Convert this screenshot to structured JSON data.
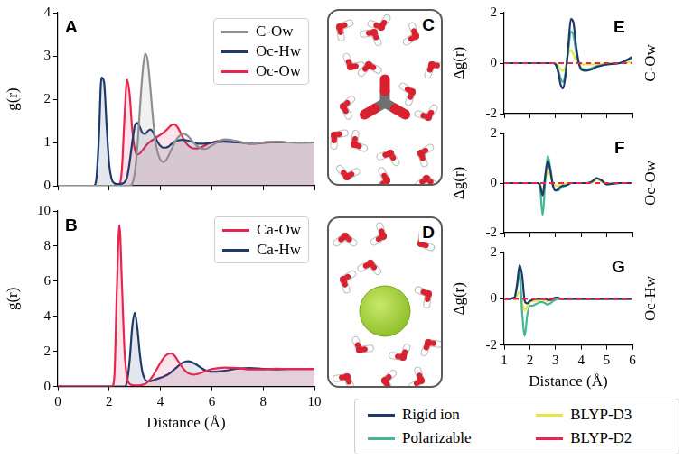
{
  "chart_data": [
    {
      "panel_label": "A",
      "type": "area",
      "y_label": "g(r)",
      "x": [
        0,
        1,
        1.4,
        1.5,
        1.6,
        1.7,
        1.8,
        1.9,
        2,
        2.1,
        2.2,
        2.3,
        2.4,
        2.5,
        2.6,
        2.7,
        2.8,
        2.9,
        3,
        3.1,
        3.2,
        3.3,
        3.4,
        3.5,
        3.6,
        3.7,
        3.8,
        3.9,
        4,
        4.1,
        4.2,
        4.3,
        4.4,
        4.5,
        4.6,
        4.7,
        4.8,
        4.9,
        5,
        5.1,
        5.2,
        5.3,
        5.4,
        5.5,
        5.6,
        5.7,
        5.8,
        5.9,
        6,
        6.5,
        7,
        7.5,
        8,
        8.5,
        9,
        9.5,
        10
      ],
      "xlim": [
        0,
        10
      ],
      "xticks": [
        0,
        2,
        4,
        6,
        8,
        10
      ],
      "ylim": [
        0,
        4
      ],
      "yticks": [
        0,
        1,
        2,
        3,
        4
      ],
      "tick_labels": "y",
      "grid": false,
      "legend": "upper right",
      "series": [
        {
          "name": "C-Ow",
          "color": "#8f8f8f",
          "values": [
            0,
            0,
            0,
            0,
            0,
            0,
            0,
            0,
            0,
            0,
            0,
            0,
            0,
            0,
            0,
            0,
            0,
            0.05,
            0.3,
            0.9,
            1.8,
            2.6,
            3.05,
            2.9,
            2.3,
            1.6,
            1.05,
            0.75,
            0.6,
            0.55,
            0.58,
            0.68,
            0.8,
            0.93,
            1.05,
            1.13,
            1.18,
            1.2,
            1.18,
            1.13,
            1.06,
            0.99,
            0.93,
            0.89,
            0.86,
            0.85,
            0.86,
            0.89,
            0.93,
            1.07,
            1.03,
            0.97,
            1.0,
            1.02,
            1.0,
            0.99,
            1.0
          ]
        },
        {
          "name": "Oc-Hw",
          "color": "#1d3a6d",
          "values": [
            0,
            0,
            0,
            0.15,
            1.1,
            2.5,
            2.4,
            1.4,
            0.5,
            0.15,
            0.06,
            0.04,
            0.04,
            0.05,
            0.08,
            0.2,
            0.55,
            1.0,
            1.38,
            1.45,
            1.35,
            1.22,
            1.2,
            1.26,
            1.3,
            1.25,
            1.12,
            1.0,
            0.92,
            0.88,
            0.88,
            0.9,
            0.95,
            1.0,
            1.03,
            1.05,
            1.06,
            1.06,
            1.05,
            1.04,
            1.02,
            1.0,
            0.98,
            0.97,
            0.97,
            0.97,
            0.98,
            0.99,
            1.0,
            1.02,
            1.0,
            0.99,
            1.0,
            1.01,
            1.0,
            1.0,
            1.0
          ]
        },
        {
          "name": "Oc-Ow",
          "color": "#e8244f",
          "values": [
            0,
            0,
            0,
            0,
            0,
            0,
            0,
            0,
            0,
            0,
            0,
            0,
            0.02,
            0.4,
            1.6,
            2.45,
            2.1,
            1.3,
            0.85,
            0.72,
            0.75,
            0.82,
            0.9,
            0.97,
            1.02,
            1.06,
            1.1,
            1.14,
            1.18,
            1.22,
            1.27,
            1.33,
            1.39,
            1.42,
            1.4,
            1.32,
            1.2,
            1.08,
            0.98,
            0.92,
            0.88,
            0.86,
            0.86,
            0.87,
            0.89,
            0.92,
            0.95,
            0.98,
            1.0,
            1.05,
            1.02,
            0.97,
            0.99,
            1.01,
            1.0,
            1.0,
            1.0
          ]
        }
      ]
    },
    {
      "panel_label": "B",
      "type": "area",
      "x_label": "Distance (Å)",
      "y_label": "g(r)",
      "x": [
        0,
        1,
        1.4,
        1.5,
        1.6,
        1.7,
        1.8,
        1.9,
        2,
        2.1,
        2.2,
        2.3,
        2.4,
        2.5,
        2.6,
        2.7,
        2.8,
        2.9,
        3,
        3.1,
        3.2,
        3.3,
        3.4,
        3.5,
        3.6,
        3.7,
        3.8,
        3.9,
        4,
        4.1,
        4.2,
        4.3,
        4.4,
        4.5,
        4.6,
        4.7,
        4.8,
        4.9,
        5,
        5.1,
        5.2,
        5.3,
        5.4,
        5.5,
        5.6,
        5.7,
        5.8,
        5.9,
        6,
        6.5,
        7,
        7.5,
        8,
        8.5,
        9,
        9.5,
        10
      ],
      "xlim": [
        0,
        10
      ],
      "xticks": [
        0,
        2,
        4,
        6,
        8,
        10
      ],
      "ylim": [
        0,
        10
      ],
      "yticks": [
        0,
        2,
        4,
        6,
        8,
        10
      ],
      "grid": false,
      "legend": "upper right",
      "series": [
        {
          "name": "Ca-Ow",
          "color": "#e8244f",
          "values": [
            0,
            0,
            0,
            0,
            0,
            0,
            0,
            0,
            0,
            0,
            0.5,
            5.5,
            9.2,
            5.8,
            2.0,
            0.5,
            0.15,
            0.08,
            0.06,
            0.06,
            0.07,
            0.1,
            0.15,
            0.25,
            0.4,
            0.6,
            0.85,
            1.1,
            1.35,
            1.58,
            1.75,
            1.85,
            1.88,
            1.82,
            1.65,
            1.42,
            1.2,
            1.0,
            0.85,
            0.75,
            0.7,
            0.68,
            0.7,
            0.74,
            0.79,
            0.85,
            0.9,
            0.95,
            0.99,
            1.08,
            1.05,
            0.97,
            0.98,
            1.01,
            1.0,
            1.0,
            1.0
          ]
        },
        {
          "name": "Ca-Hw",
          "color": "#1d3a6d",
          "values": [
            0,
            0,
            0,
            0,
            0,
            0,
            0,
            0,
            0,
            0,
            0,
            0,
            0,
            0,
            0,
            0.3,
            1.5,
            3.4,
            4.2,
            3.3,
            1.8,
            0.8,
            0.4,
            0.3,
            0.3,
            0.35,
            0.4,
            0.45,
            0.5,
            0.55,
            0.62,
            0.7,
            0.8,
            0.92,
            1.05,
            1.18,
            1.3,
            1.38,
            1.43,
            1.44,
            1.4,
            1.33,
            1.25,
            1.15,
            1.05,
            0.96,
            0.9,
            0.86,
            0.84,
            0.9,
            1.02,
            1.05,
            1.0,
            0.98,
            1.0,
            1.0,
            1.0
          ]
        }
      ]
    },
    {
      "panel_label": "E",
      "type": "line",
      "y_label": "Δg(r)",
      "side_label": "C-Ow",
      "x": [
        1,
        1.2,
        1.4,
        1.5,
        1.6,
        1.7,
        1.8,
        1.9,
        2,
        2.1,
        2.2,
        2.3,
        2.4,
        2.5,
        2.6,
        2.7,
        2.8,
        2.9,
        3,
        3.1,
        3.2,
        3.3,
        3.4,
        3.5,
        3.6,
        3.7,
        3.8,
        3.9,
        4,
        4.2,
        4.4,
        4.6,
        4.8,
        5,
        5.5,
        6
      ],
      "xlim": [
        1,
        6
      ],
      "xticks": [
        1,
        2,
        3,
        4,
        5,
        6
      ],
      "ylim": [
        -2,
        2
      ],
      "yticks": [
        -2,
        0,
        2
      ],
      "tick_labels": "y",
      "grid": false,
      "series": [
        {
          "name": "Rigid ion",
          "color": "#1d3a6d",
          "values": [
            0,
            0,
            0,
            0,
            0,
            0,
            0,
            0,
            0,
            0,
            0,
            0,
            0,
            0,
            0,
            0,
            0,
            0,
            -0.05,
            -0.35,
            -0.85,
            -1.0,
            -0.4,
            0.7,
            1.75,
            1.6,
            0.7,
            0.05,
            -0.25,
            -0.3,
            -0.25,
            -0.15,
            -0.1,
            -0.05,
            0,
            0.25
          ]
        },
        {
          "name": "Polarizable",
          "color": "#45b796",
          "values": [
            0,
            0,
            0,
            0,
            0,
            0,
            0,
            0,
            0,
            0,
            0,
            0,
            0,
            0,
            0,
            0,
            0,
            0,
            -0.03,
            -0.25,
            -0.6,
            -0.75,
            -0.3,
            0.5,
            1.25,
            1.1,
            0.45,
            0,
            -0.2,
            -0.25,
            -0.2,
            -0.12,
            -0.08,
            -0.05,
            0,
            0.2
          ]
        },
        {
          "name": "BLYP-D3",
          "color": "#f0e14a",
          "values": [
            0,
            0,
            0,
            0,
            0,
            0,
            0,
            0,
            0,
            0,
            0,
            0,
            0,
            0,
            0,
            0,
            0,
            0,
            -0.02,
            -0.1,
            -0.25,
            -0.3,
            -0.1,
            0.35,
            0.5,
            0.35,
            0.1,
            0,
            -0.05,
            -0.05,
            -0.05,
            -0.03,
            -0.02,
            0,
            0,
            0.05
          ]
        },
        {
          "name": "BLYP-D2",
          "color": "#e8244f",
          "line_style": "dashed",
          "values": [
            0,
            0,
            0,
            0,
            0,
            0,
            0,
            0,
            0,
            0,
            0,
            0,
            0,
            0,
            0,
            0,
            0,
            0,
            0,
            0,
            0,
            0,
            0,
            0,
            0,
            0,
            0,
            0,
            0,
            0,
            0,
            0,
            0,
            0,
            0,
            0
          ]
        }
      ]
    },
    {
      "panel_label": "F",
      "type": "line",
      "y_label": "Δg(r)",
      "side_label": "Oc-Ow",
      "x": [
        1,
        1.2,
        1.4,
        1.5,
        1.6,
        1.7,
        1.8,
        1.9,
        2,
        2.1,
        2.2,
        2.3,
        2.4,
        2.5,
        2.6,
        2.7,
        2.8,
        2.9,
        3,
        3.1,
        3.2,
        3.3,
        3.4,
        3.5,
        3.6,
        3.7,
        3.8,
        3.9,
        4,
        4.2,
        4.4,
        4.6,
        4.8,
        5,
        5.5,
        6
      ],
      "xlim": [
        1,
        6
      ],
      "xticks": [
        1,
        2,
        3,
        4,
        5,
        6
      ],
      "ylim": [
        -2,
        2
      ],
      "yticks": [
        -2,
        0,
        2
      ],
      "tick_labels": "y",
      "grid": false,
      "series": [
        {
          "name": "Rigid ion",
          "color": "#1d3a6d",
          "values": [
            0,
            0,
            0,
            0,
            0,
            0,
            0,
            0,
            0,
            0,
            0,
            0,
            -0.1,
            -0.5,
            0.3,
            0.9,
            0.5,
            -0.1,
            -0.3,
            -0.25,
            -0.15,
            -0.1,
            -0.1,
            -0.05,
            0,
            0,
            0,
            0,
            0,
            0,
            0.05,
            0.2,
            0.1,
            -0.05,
            0,
            0
          ]
        },
        {
          "name": "Polarizable",
          "color": "#45b796",
          "values": [
            0,
            0,
            0,
            0,
            0,
            0,
            0,
            0,
            0,
            0,
            0,
            0,
            -0.2,
            -1.3,
            0.1,
            1.1,
            0.6,
            -0.1,
            -0.3,
            -0.3,
            -0.2,
            -0.15,
            -0.1,
            -0.05,
            0,
            0,
            0,
            0,
            0,
            0,
            0.05,
            0.2,
            0.1,
            -0.05,
            0,
            0
          ]
        },
        {
          "name": "BLYP-D3",
          "color": "#f0e14a",
          "values": [
            0,
            0,
            0,
            0,
            0,
            0,
            0,
            0,
            0,
            0,
            0,
            0,
            -0.05,
            -0.3,
            0.1,
            0.45,
            0.3,
            0,
            -0.1,
            -0.1,
            -0.05,
            -0.05,
            0,
            0,
            0,
            0,
            0,
            0,
            0,
            0,
            0,
            0.15,
            0.05,
            0,
            0,
            0
          ]
        },
        {
          "name": "BLYP-D2",
          "color": "#e8244f",
          "line_style": "dashed",
          "values": [
            0,
            0,
            0,
            0,
            0,
            0,
            0,
            0,
            0,
            0,
            0,
            0,
            0,
            0,
            0,
            0,
            0,
            0,
            0,
            0,
            0,
            0,
            0,
            0,
            0,
            0,
            0,
            0,
            0,
            0,
            0,
            0,
            0,
            0,
            0,
            0
          ]
        }
      ]
    },
    {
      "panel_label": "G",
      "type": "line",
      "x_label": "Distance (Å)",
      "y_label": "Δg(r)",
      "side_label": "Oc-Hw",
      "x": [
        1,
        1.2,
        1.4,
        1.5,
        1.6,
        1.7,
        1.8,
        1.9,
        2,
        2.1,
        2.2,
        2.3,
        2.4,
        2.5,
        2.6,
        2.7,
        2.8,
        2.9,
        3,
        3.1,
        3.2,
        3.3,
        3.4,
        3.5,
        3.6,
        3.7,
        3.8,
        3.9,
        4,
        4.2,
        4.4,
        4.6,
        4.8,
        5,
        5.5,
        6
      ],
      "xlim": [
        1,
        6
      ],
      "xticks": [
        1,
        2,
        3,
        4,
        5,
        6
      ],
      "ylim": [
        -2,
        2
      ],
      "yticks": [
        -2,
        0,
        2
      ],
      "grid": false,
      "legend": "bottom",
      "series": [
        {
          "name": "Rigid ion",
          "color": "#1d3a6d",
          "values": [
            0,
            0,
            0.05,
            0.6,
            1.45,
            1.0,
            -0.1,
            -0.2,
            -0.1,
            -0.05,
            0,
            0,
            0,
            0,
            0,
            -0.05,
            -0.05,
            0,
            0.05,
            0.05,
            0,
            0,
            0,
            0,
            0,
            0,
            0,
            0,
            0,
            0,
            0,
            0,
            0,
            0,
            0,
            0
          ]
        },
        {
          "name": "Polarizable",
          "color": "#45b796",
          "values": [
            0,
            0,
            0.05,
            0.5,
            1.1,
            -0.6,
            -1.6,
            -0.7,
            -0.3,
            -0.3,
            -0.25,
            -0.2,
            -0.15,
            -0.15,
            -0.2,
            -0.25,
            -0.2,
            -0.1,
            -0.05,
            0,
            0,
            0,
            0,
            0,
            0,
            0,
            0,
            0,
            0,
            0,
            0,
            0,
            0,
            0,
            0,
            0
          ]
        },
        {
          "name": "BLYP-D3",
          "color": "#f0e14a",
          "values": [
            0,
            0,
            0.02,
            0.15,
            0.3,
            -0.15,
            -0.5,
            -0.3,
            -0.15,
            -0.1,
            -0.1,
            -0.08,
            -0.05,
            -0.05,
            -0.08,
            -0.1,
            -0.08,
            -0.05,
            0,
            0,
            0,
            0,
            0,
            0,
            0,
            0,
            0,
            0,
            0,
            0,
            0,
            0,
            0,
            0,
            0,
            0
          ]
        },
        {
          "name": "BLYP-D2",
          "color": "#e8244f",
          "line_style": "dashed",
          "values": [
            0,
            0,
            0,
            0,
            0,
            0,
            0,
            0,
            0,
            0,
            0,
            0,
            0,
            0,
            0,
            0,
            0,
            0,
            0,
            0,
            0,
            0,
            0,
            0,
            0,
            0,
            0,
            0,
            0,
            0,
            0,
            0,
            0,
            0,
            0,
            0
          ]
        }
      ]
    }
  ],
  "illustrations": [
    {
      "panel_label": "C"
    },
    {
      "panel_label": "D"
    }
  ]
}
